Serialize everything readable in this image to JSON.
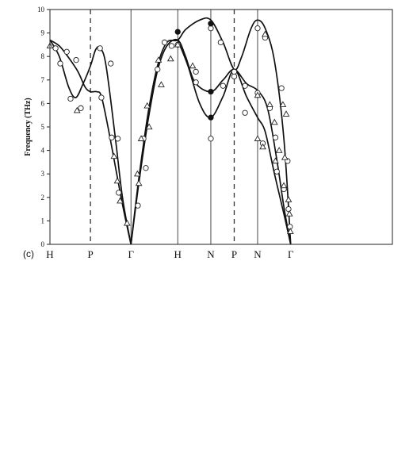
{
  "chart_data": {
    "type": "scatter",
    "panel_label": "(c)",
    "ylabel": "Frequency (THz)",
    "ylim": [
      0,
      10
    ],
    "yticks": [
      "0",
      "1",
      "2",
      "3",
      "4",
      "5",
      "6",
      "7",
      "8",
      "9",
      "10"
    ],
    "xlim": [
      0,
      7.32
    ],
    "xticks": [
      {
        "label": "H",
        "x": 0
      },
      {
        "label": "P",
        "x": 0.866
      },
      {
        "label": "Γ",
        "x": 1.732
      },
      {
        "label": "H",
        "x": 2.732
      },
      {
        "label": "N",
        "x": 3.439
      },
      {
        "label": "P",
        "x": 3.939
      },
      {
        "label": "N",
        "x": 4.439
      },
      {
        "label": "Γ",
        "x": 5.146
      }
    ],
    "symmetry_lines": [
      {
        "x": 0.866,
        "style": "dashed"
      },
      {
        "x": 1.732,
        "style": "solid"
      },
      {
        "x": 2.732,
        "style": "solid"
      },
      {
        "x": 3.439,
        "style": "solid"
      },
      {
        "x": 3.939,
        "style": "dashed"
      },
      {
        "x": 4.439,
        "style": "solid"
      }
    ],
    "curves": [
      {
        "points": [
          [
            0,
            8.7
          ],
          [
            0.2,
            8.45
          ],
          [
            0.4,
            7.95
          ],
          [
            0.6,
            7.35
          ],
          [
            0.75,
            6.7
          ],
          [
            0.866,
            6.5
          ],
          [
            1.0,
            6.5
          ],
          [
            1.1,
            6.3
          ],
          [
            1.25,
            4.9
          ],
          [
            1.4,
            3.3
          ],
          [
            1.55,
            1.7
          ],
          [
            1.732,
            0
          ]
        ]
      },
      {
        "points": [
          [
            0,
            8.7
          ],
          [
            0.2,
            8.0
          ],
          [
            0.4,
            6.7
          ],
          [
            0.55,
            6.25
          ],
          [
            0.7,
            6.8
          ],
          [
            0.866,
            7.6
          ],
          [
            0.98,
            8.3
          ],
          [
            1.08,
            8.35
          ],
          [
            1.2,
            7.6
          ],
          [
            1.4,
            4.5
          ],
          [
            1.55,
            2.0
          ],
          [
            1.732,
            0
          ]
        ]
      },
      {
        "points": [
          [
            1.732,
            0
          ],
          [
            1.9,
            2.8
          ],
          [
            2.1,
            5.6
          ],
          [
            2.3,
            7.6
          ],
          [
            2.5,
            8.6
          ],
          [
            2.732,
            8.7
          ],
          [
            2.9,
            9.15
          ],
          [
            3.2,
            9.55
          ],
          [
            3.439,
            9.55
          ],
          [
            3.7,
            8.6
          ],
          [
            3.939,
            7.45
          ],
          [
            4.1,
            8.0
          ],
          [
            4.3,
            9.2
          ],
          [
            4.439,
            9.55
          ],
          [
            4.6,
            9.2
          ],
          [
            4.8,
            7.8
          ],
          [
            5.0,
            4.5
          ],
          [
            5.146,
            0
          ]
        ]
      },
      {
        "points": [
          [
            1.732,
            0
          ],
          [
            1.9,
            2.6
          ],
          [
            2.1,
            5.3
          ],
          [
            2.3,
            7.4
          ],
          [
            2.5,
            8.45
          ],
          [
            2.732,
            8.7
          ],
          [
            2.9,
            8.0
          ],
          [
            3.1,
            6.9
          ],
          [
            3.439,
            6.5
          ],
          [
            3.7,
            7.0
          ],
          [
            3.939,
            7.45
          ],
          [
            4.2,
            6.85
          ],
          [
            4.439,
            6.55
          ],
          [
            4.65,
            5.8
          ],
          [
            4.85,
            3.6
          ],
          [
            5.0,
            1.6
          ],
          [
            5.146,
            0
          ]
        ]
      },
      {
        "points": [
          [
            2.732,
            8.7
          ],
          [
            2.95,
            7.6
          ],
          [
            3.2,
            6.0
          ],
          [
            3.439,
            5.4
          ],
          [
            3.7,
            6.3
          ],
          [
            3.939,
            7.45
          ],
          [
            4.2,
            6.3
          ],
          [
            4.439,
            5.4
          ],
          [
            4.6,
            4.8
          ],
          [
            4.8,
            3.0
          ],
          [
            5.0,
            1.3
          ],
          [
            5.146,
            0
          ]
        ]
      }
    ],
    "series": [
      {
        "marker": "circle-open",
        "points": [
          [
            0.12,
            8.35
          ],
          [
            0.22,
            7.7
          ],
          [
            0.36,
            8.2
          ],
          [
            0.44,
            6.2
          ],
          [
            0.56,
            7.85
          ],
          [
            0.66,
            5.8
          ],
          [
            1.07,
            8.35
          ],
          [
            1.1,
            6.25
          ],
          [
            1.3,
            7.7
          ],
          [
            1.32,
            4.55
          ],
          [
            1.45,
            4.5
          ],
          [
            1.47,
            2.2
          ],
          [
            1.88,
            1.65
          ],
          [
            2.0,
            4.5
          ],
          [
            2.05,
            3.25
          ],
          [
            2.3,
            7.45
          ],
          [
            2.45,
            8.6
          ],
          [
            2.6,
            8.45
          ],
          [
            2.732,
            8.5
          ],
          [
            3.12,
            7.35
          ],
          [
            3.12,
            6.9
          ],
          [
            3.439,
            9.2
          ],
          [
            3.439,
            4.5
          ],
          [
            3.65,
            8.6
          ],
          [
            3.7,
            6.75
          ],
          [
            3.939,
            7.35
          ],
          [
            3.939,
            7.15
          ],
          [
            4.17,
            5.6
          ],
          [
            4.17,
            6.75
          ],
          [
            4.439,
            9.2
          ],
          [
            4.439,
            6.45
          ],
          [
            4.55,
            4.3
          ],
          [
            4.6,
            8.8
          ],
          [
            4.7,
            5.8
          ],
          [
            4.82,
            4.55
          ],
          [
            4.85,
            3.1
          ],
          [
            4.95,
            6.65
          ],
          [
            5.0,
            2.35
          ],
          [
            5.08,
            3.55
          ],
          [
            5.1,
            1.5
          ],
          [
            5.13,
            0.75
          ]
        ]
      },
      {
        "marker": "triangle-open",
        "points": [
          [
            0.0,
            8.45
          ],
          [
            0.58,
            5.7
          ],
          [
            1.37,
            3.75
          ],
          [
            1.44,
            2.7
          ],
          [
            1.5,
            1.85
          ],
          [
            1.65,
            0.9
          ],
          [
            1.87,
            3.0
          ],
          [
            1.9,
            2.6
          ],
          [
            1.95,
            4.5
          ],
          [
            2.08,
            5.9
          ],
          [
            2.12,
            5.0
          ],
          [
            2.32,
            7.85
          ],
          [
            2.38,
            6.8
          ],
          [
            2.58,
            7.9
          ],
          [
            2.732,
            8.5
          ],
          [
            3.05,
            7.6
          ],
          [
            4.439,
            6.35
          ],
          [
            4.439,
            4.5
          ],
          [
            4.55,
            4.15
          ],
          [
            4.6,
            8.95
          ],
          [
            4.7,
            5.95
          ],
          [
            4.8,
            5.2
          ],
          [
            4.82,
            3.55
          ],
          [
            4.9,
            4.0
          ],
          [
            4.98,
            5.95
          ],
          [
            5.0,
            2.5
          ],
          [
            5.02,
            3.7
          ],
          [
            5.05,
            5.55
          ],
          [
            5.1,
            1.9
          ],
          [
            5.12,
            1.3
          ],
          [
            5.14,
            0.55
          ]
        ]
      },
      {
        "marker": "circle-filled",
        "points": [
          [
            2.732,
            9.05
          ],
          [
            3.439,
            9.4
          ],
          [
            3.439,
            6.5
          ],
          [
            3.439,
            5.4
          ]
        ]
      }
    ]
  }
}
